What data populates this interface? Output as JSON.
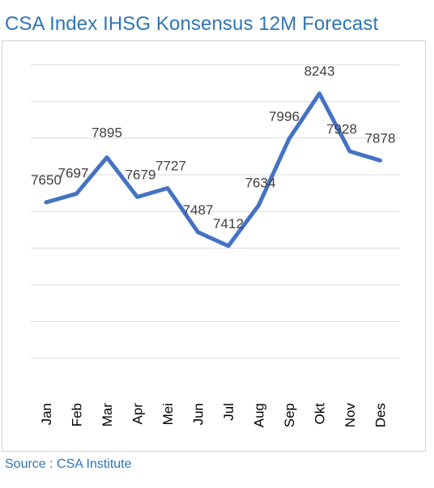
{
  "title": "CSA Index IHSG Konsensus 12M Forecast",
  "source": "Source : CSA Institute",
  "colors": {
    "title": "#2E75B6",
    "line": "#4472C4",
    "grid": "#d9d9d9"
  },
  "chart_data": {
    "type": "line",
    "title": "CSA Index IHSG Konsensus 12M Forecast",
    "categories": [
      "Jan",
      "Feb",
      "Mar",
      "Apr",
      "Mei",
      "Jun",
      "Jul",
      "Aug",
      "Sep",
      "Okt",
      "Nov",
      "Des"
    ],
    "series": [
      {
        "values": [
          7650,
          7697,
          7895,
          7679,
          7727,
          7487,
          7412,
          7634,
          7996,
          8243,
          7928,
          7878
        ]
      }
    ],
    "ylim": [
      6600,
      8400
    ],
    "grid": true,
    "data_labels": true
  }
}
